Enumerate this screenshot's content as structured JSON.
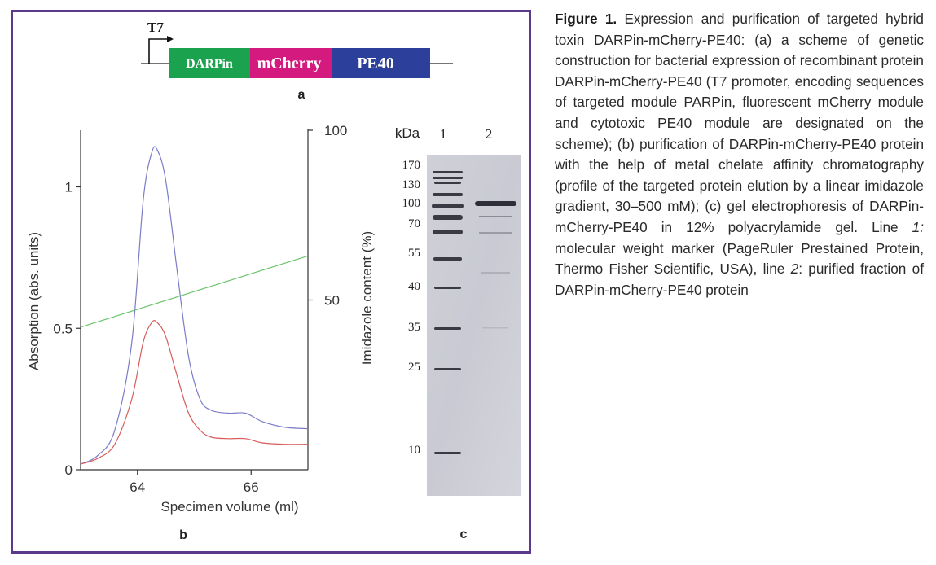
{
  "colors": {
    "frame": "#5b3a8c",
    "darpin": "#1aa24e",
    "mcherry": "#d4197f",
    "pe40": "#2b3f9b",
    "blue_trace": "#7b7bc8",
    "red_trace": "#d85c5c",
    "green_trace": "#6cc46c"
  },
  "panel_a": {
    "promoter": "T7",
    "segments": [
      "DARPin",
      "mCherry",
      "PE40"
    ],
    "label": "a"
  },
  "panel_b": {
    "label": "b",
    "chart_data": {
      "type": "line",
      "xlabel": "Specimen volume (ml)",
      "ylabel": "Absorption (abs. units)",
      "y2label": "Imidazole content (%)",
      "xlim": [
        63,
        67
      ],
      "ylim": [
        0,
        1.2
      ],
      "y2lim": [
        0,
        100
      ],
      "xticks": [
        "64",
        "66"
      ],
      "yticks": [
        "0",
        "0.5",
        "1"
      ],
      "y2ticks": [
        "50",
        "100"
      ],
      "series": [
        {
          "color": "blue",
          "x": [
            63.0,
            63.3,
            63.6,
            63.9,
            64.1,
            64.25,
            64.35,
            64.5,
            64.7,
            64.9,
            65.1,
            65.3,
            65.6,
            65.9,
            66.2,
            66.6,
            67.0
          ],
          "y": [
            0.02,
            0.05,
            0.14,
            0.45,
            0.95,
            1.12,
            1.13,
            1.02,
            0.7,
            0.4,
            0.25,
            0.21,
            0.2,
            0.2,
            0.17,
            0.15,
            0.145
          ]
        },
        {
          "color": "red",
          "x": [
            63.0,
            63.3,
            63.6,
            63.9,
            64.1,
            64.25,
            64.35,
            64.5,
            64.7,
            64.9,
            65.1,
            65.3,
            65.6,
            65.9,
            66.2,
            66.6,
            67.0
          ],
          "y": [
            0.02,
            0.04,
            0.09,
            0.25,
            0.45,
            0.52,
            0.52,
            0.47,
            0.33,
            0.2,
            0.14,
            0.115,
            0.11,
            0.11,
            0.095,
            0.09,
            0.09
          ]
        },
        {
          "color": "green",
          "axis": "right",
          "x": [
            63.0,
            67.0
          ],
          "y": [
            42,
            63
          ]
        }
      ]
    }
  },
  "panel_c": {
    "label": "c",
    "unit": "kDa",
    "lanes": [
      "1",
      "2"
    ],
    "markers": [
      "170",
      "130",
      "100",
      "70",
      "55",
      "40",
      "35",
      "25",
      "10"
    ]
  },
  "caption": {
    "title": "Figure 1.",
    "text1": " Expression and purification of targeted hybrid toxin DARPin-mCherry-PE40: (a) a scheme of genetic construction for bacterial expression of recombinant protein DARPin-mCherry-PE40 (T7 promoter, encoding sequences of targeted module PARPin, fluorescent mCherry module and cytotoxic PE40 module are designated on the scheme); (b) purification of DARPin-mCherry-PE40 protein with the help of metal chelate affinity chromatography (profile of the targeted protein elution by a linear imidazole gradient, 30–500 mM); (c) gel electrophoresis of DARPin-mCherry-PE40 in 12% polyacrylamide gel. Line ",
    "lane1_num": "1:",
    "text2": " molecular weight marker (PageRuler Prestained Protein, Thermo Fisher Scientific, USA), line ",
    "lane2_num": "2",
    "text3": ": purified fraction of DARPin-mCherry-PE40 protein"
  }
}
